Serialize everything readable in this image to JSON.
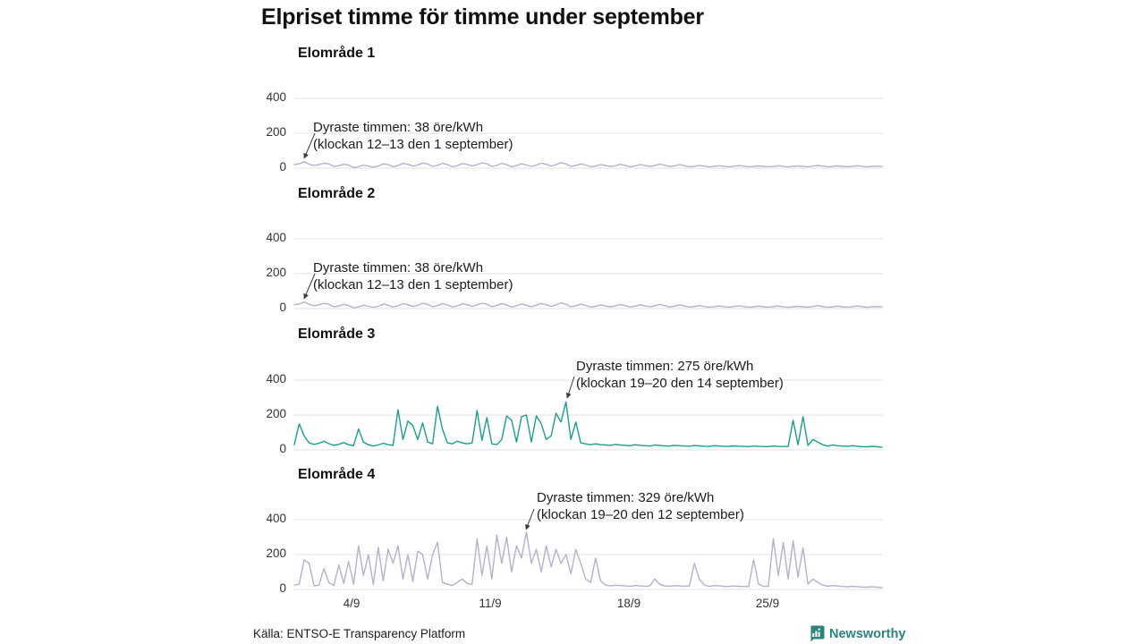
{
  "title": "Elpriset timme för timme under september",
  "footer": {
    "source": "Källa: ENTSO-E Transparency Platform",
    "brand": "Newsworthy"
  },
  "axis": {
    "yticks": [
      "400",
      "200",
      "0"
    ],
    "xticks": [
      "4/9",
      "11/9",
      "18/9",
      "25/9"
    ]
  },
  "colors": {
    "purple_line": "#b3b1ce",
    "teal_line": "#1b9e8d",
    "grid": "#e7e7eb",
    "arrow": "#3a3a3a",
    "brand_teal": "#2b837d"
  },
  "chart_data": [
    {
      "type": "line",
      "title": "Elområde 1",
      "unit": "öre/kWh",
      "color": "#b3b1ce",
      "ylim": [
        0,
        400
      ],
      "yticks": [
        0,
        200,
        400
      ],
      "x_range": "1–30 september, 6h sampling",
      "xtick_labels": [
        "4/9",
        "11/9",
        "18/9",
        "25/9"
      ],
      "annotation": {
        "line1": "Dyraste timmen: 38 öre/kWh",
        "line2": "(klockan 12–13 den 1 september)",
        "max_value": 38
      },
      "values": [
        20,
        25,
        38,
        22,
        15,
        20,
        28,
        24,
        10,
        14,
        22,
        18,
        3,
        8,
        18,
        12,
        6,
        12,
        25,
        20,
        8,
        15,
        27,
        22,
        12,
        18,
        30,
        24,
        10,
        16,
        28,
        20,
        8,
        14,
        26,
        22,
        12,
        20,
        30,
        25,
        10,
        16,
        28,
        20,
        8,
        15,
        25,
        18,
        10,
        18,
        28,
        22,
        12,
        20,
        32,
        24,
        10,
        15,
        24,
        18,
        8,
        12,
        20,
        15,
        10,
        14,
        22,
        16,
        8,
        13,
        21,
        15,
        10,
        15,
        23,
        17,
        9,
        13,
        20,
        14,
        8,
        11,
        16,
        12,
        7,
        10,
        14,
        11,
        8,
        11,
        15,
        12,
        7,
        10,
        13,
        10,
        8,
        11,
        14,
        11,
        7,
        10,
        13,
        10,
        8,
        12,
        16,
        12,
        7,
        10,
        13,
        10,
        8,
        11,
        14,
        11,
        7,
        10,
        12,
        9
      ]
    },
    {
      "type": "line",
      "title": "Elområde 2",
      "unit": "öre/kWh",
      "color": "#b3b1ce",
      "ylim": [
        0,
        400
      ],
      "yticks": [
        0,
        200,
        400
      ],
      "x_range": "1–30 september, 6h sampling",
      "xtick_labels": [
        "4/9",
        "11/9",
        "18/9",
        "25/9"
      ],
      "annotation": {
        "line1": "Dyraste timmen: 38 öre/kWh",
        "line2": "(klockan 12–13 den 1 september)",
        "max_value": 38
      },
      "values": [
        22,
        26,
        38,
        24,
        16,
        22,
        30,
        25,
        10,
        15,
        24,
        18,
        4,
        9,
        19,
        13,
        7,
        13,
        26,
        20,
        9,
        16,
        28,
        22,
        12,
        19,
        31,
        24,
        11,
        17,
        29,
        21,
        9,
        15,
        27,
        22,
        13,
        21,
        31,
        25,
        11,
        17,
        29,
        21,
        9,
        16,
        26,
        19,
        11,
        19,
        29,
        22,
        13,
        21,
        33,
        25,
        10,
        16,
        25,
        18,
        9,
        13,
        21,
        15,
        10,
        15,
        23,
        17,
        9,
        14,
        22,
        16,
        10,
        16,
        24,
        17,
        9,
        14,
        21,
        15,
        8,
        12,
        17,
        12,
        8,
        11,
        15,
        11,
        8,
        12,
        16,
        12,
        7,
        10,
        14,
        10,
        8,
        11,
        15,
        11,
        7,
        10,
        13,
        10,
        8,
        12,
        17,
        12,
        7,
        10,
        14,
        10,
        8,
        11,
        15,
        11,
        7,
        10,
        12,
        9
      ]
    },
    {
      "type": "line",
      "title": "Elområde 3",
      "unit": "öre/kWh",
      "color": "#1b9e8d",
      "ylim": [
        0,
        400
      ],
      "yticks": [
        0,
        200,
        400
      ],
      "x_range": "1–30 september, 6h sampling",
      "xtick_labels": [
        "4/9",
        "11/9",
        "18/9",
        "25/9"
      ],
      "annotation": {
        "line1": "Dyraste timmen: 275 öre/kWh",
        "line2": "(klockan 19–20 den 14 september)",
        "max_value": 275
      },
      "values": [
        30,
        150,
        80,
        40,
        32,
        38,
        50,
        36,
        26,
        32,
        42,
        30,
        24,
        120,
        45,
        30,
        22,
        28,
        38,
        30,
        26,
        230,
        60,
        165,
        140,
        60,
        155,
        45,
        35,
        250,
        120,
        40,
        35,
        50,
        40,
        35,
        40,
        225,
        55,
        185,
        35,
        30,
        60,
        195,
        170,
        45,
        190,
        200,
        45,
        195,
        150,
        60,
        80,
        210,
        160,
        275,
        60,
        160,
        40,
        35,
        30,
        35,
        30,
        28,
        26,
        32,
        28,
        26,
        24,
        30,
        26,
        24,
        22,
        28,
        25,
        23,
        22,
        26,
        24,
        22,
        21,
        25,
        23,
        21,
        20,
        24,
        22,
        20,
        20,
        23,
        21,
        20,
        19,
        22,
        20,
        19,
        19,
        22,
        20,
        19,
        20,
        170,
        30,
        190,
        25,
        60,
        45,
        30,
        22,
        28,
        24,
        22,
        20,
        24,
        21,
        19,
        18,
        20,
        18,
        15
      ]
    },
    {
      "type": "line",
      "title": "Elområde 4",
      "unit": "öre/kWh",
      "color": "#b3b1ce",
      "ylim": [
        0,
        400
      ],
      "yticks": [
        0,
        200,
        400
      ],
      "x_range": "1–30 september, 6h sampling",
      "xtick_labels": [
        "4/9",
        "11/9",
        "18/9",
        "25/9"
      ],
      "annotation": {
        "line1": "Dyraste timmen: 329 öre/kWh",
        "line2": "(klockan 19–20 den 12 september)",
        "max_value": 329
      },
      "values": [
        25,
        30,
        170,
        150,
        20,
        25,
        120,
        40,
        22,
        140,
        35,
        160,
        30,
        250,
        80,
        200,
        28,
        240,
        50,
        230,
        150,
        250,
        60,
        200,
        45,
        220,
        200,
        60,
        200,
        270,
        40,
        30,
        22,
        40,
        60,
        35,
        30,
        290,
        80,
        250,
        60,
        310,
        150,
        300,
        100,
        250,
        180,
        329,
        150,
        230,
        100,
        250,
        130,
        230,
        150,
        200,
        90,
        230,
        150,
        60,
        40,
        180,
        50,
        25,
        20,
        24,
        22,
        20,
        18,
        22,
        20,
        18,
        20,
        60,
        30,
        20,
        18,
        22,
        20,
        18,
        20,
        150,
        60,
        25,
        18,
        22,
        20,
        18,
        17,
        20,
        18,
        17,
        16,
        170,
        30,
        18,
        18,
        290,
        80,
        270,
        60,
        280,
        70,
        240,
        30,
        60,
        40,
        25,
        18,
        22,
        20,
        17,
        15,
        18,
        16,
        14,
        13,
        15,
        13,
        11
      ]
    }
  ]
}
